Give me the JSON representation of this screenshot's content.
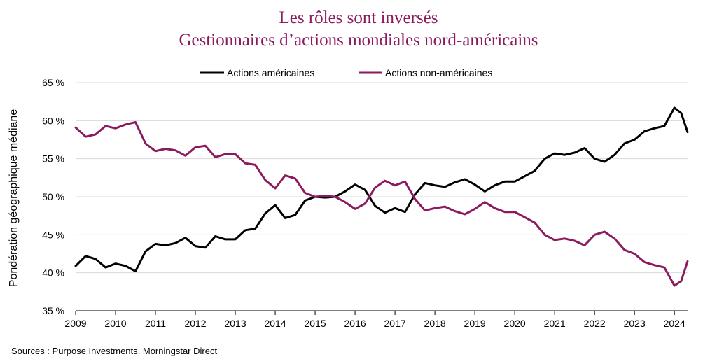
{
  "chart_data": {
    "type": "line",
    "title": "Les rôles sont inversés",
    "subtitle": "Gestionnaires d’actions mondiales nord-américains",
    "ylabel": "Pondération géographique médiane",
    "xlabel": "",
    "ylim": [
      35,
      65
    ],
    "xlim": [
      2009.0,
      2024.33
    ],
    "yticks": [
      35,
      40,
      45,
      50,
      55,
      60,
      65
    ],
    "ytick_labels": [
      "35 %",
      "40 %",
      "45 %",
      "50 %",
      "55 %",
      "60 %",
      "65 %"
    ],
    "xticks": [
      2009,
      2010,
      2011,
      2012,
      2013,
      2014,
      2015,
      2016,
      2017,
      2018,
      2019,
      2020,
      2021,
      2022,
      2023,
      2024
    ],
    "xtick_labels": [
      "2009",
      "2010",
      "2011",
      "2012",
      "2013",
      "2014",
      "2015",
      "2016",
      "2017",
      "2018",
      "2019",
      "2020",
      "2021",
      "2022",
      "2023",
      "2024"
    ],
    "legend_position": "top-center",
    "source": "Sources : Purpose Investments, Morningstar Direct",
    "series": [
      {
        "name": "Actions américaines",
        "color": "#000000",
        "x": [
          2009.0,
          2009.25,
          2009.5,
          2009.75,
          2010.0,
          2010.25,
          2010.5,
          2010.75,
          2011.0,
          2011.25,
          2011.5,
          2011.75,
          2012.0,
          2012.25,
          2012.5,
          2012.75,
          2013.0,
          2013.25,
          2013.5,
          2013.75,
          2014.0,
          2014.25,
          2014.5,
          2014.75,
          2015.0,
          2015.25,
          2015.5,
          2015.75,
          2016.0,
          2016.25,
          2016.5,
          2016.75,
          2017.0,
          2017.25,
          2017.5,
          2017.75,
          2018.0,
          2018.25,
          2018.5,
          2018.75,
          2019.0,
          2019.25,
          2019.5,
          2019.75,
          2020.0,
          2020.25,
          2020.5,
          2020.75,
          2021.0,
          2021.25,
          2021.5,
          2021.75,
          2022.0,
          2022.25,
          2022.5,
          2022.75,
          2023.0,
          2023.25,
          2023.5,
          2023.75,
          2024.0,
          2024.17,
          2024.33
        ],
        "values": [
          40.9,
          42.2,
          41.8,
          40.7,
          41.2,
          40.9,
          40.2,
          42.8,
          43.8,
          43.6,
          43.9,
          44.6,
          43.5,
          43.3,
          44.8,
          44.4,
          44.4,
          45.6,
          45.8,
          47.8,
          48.9,
          47.2,
          47.6,
          49.5,
          50.0,
          49.9,
          50.0,
          50.7,
          51.6,
          50.9,
          48.8,
          47.9,
          48.5,
          48.0,
          50.3,
          51.8,
          51.5,
          51.3,
          51.9,
          52.3,
          51.6,
          50.7,
          51.5,
          52.0,
          52.0,
          52.7,
          53.4,
          55.0,
          55.7,
          55.5,
          55.8,
          56.4,
          55.0,
          54.6,
          55.5,
          57.0,
          57.5,
          58.6,
          59.0,
          59.3,
          61.7,
          61.0,
          58.5
        ]
      },
      {
        "name": "Actions non-américaines",
        "color": "#8b1a5e",
        "x": [
          2009.0,
          2009.25,
          2009.5,
          2009.75,
          2010.0,
          2010.25,
          2010.5,
          2010.75,
          2011.0,
          2011.25,
          2011.5,
          2011.75,
          2012.0,
          2012.25,
          2012.5,
          2012.75,
          2013.0,
          2013.25,
          2013.5,
          2013.75,
          2014.0,
          2014.25,
          2014.5,
          2014.75,
          2015.0,
          2015.25,
          2015.5,
          2015.75,
          2016.0,
          2016.25,
          2016.5,
          2016.75,
          2017.0,
          2017.25,
          2017.5,
          2017.75,
          2018.0,
          2018.25,
          2018.5,
          2018.75,
          2019.0,
          2019.25,
          2019.5,
          2019.75,
          2020.0,
          2020.25,
          2020.5,
          2020.75,
          2021.0,
          2021.25,
          2021.5,
          2021.75,
          2022.0,
          2022.25,
          2022.5,
          2022.75,
          2023.0,
          2023.25,
          2023.5,
          2023.75,
          2024.0,
          2024.17,
          2024.33
        ],
        "values": [
          59.1,
          57.9,
          58.2,
          59.3,
          59.0,
          59.5,
          59.8,
          57.0,
          56.0,
          56.3,
          56.1,
          55.4,
          56.5,
          56.7,
          55.2,
          55.6,
          55.6,
          54.4,
          54.2,
          52.2,
          51.1,
          52.8,
          52.4,
          50.5,
          50.0,
          50.1,
          50.0,
          49.3,
          48.4,
          49.1,
          51.2,
          52.1,
          51.5,
          52.0,
          49.7,
          48.2,
          48.5,
          48.7,
          48.1,
          47.7,
          48.4,
          49.3,
          48.5,
          48.0,
          48.0,
          47.3,
          46.6,
          45.0,
          44.3,
          44.5,
          44.2,
          43.6,
          45.0,
          45.4,
          44.5,
          43.0,
          42.5,
          41.4,
          41.0,
          40.7,
          38.3,
          38.9,
          41.5
        ]
      }
    ]
  }
}
